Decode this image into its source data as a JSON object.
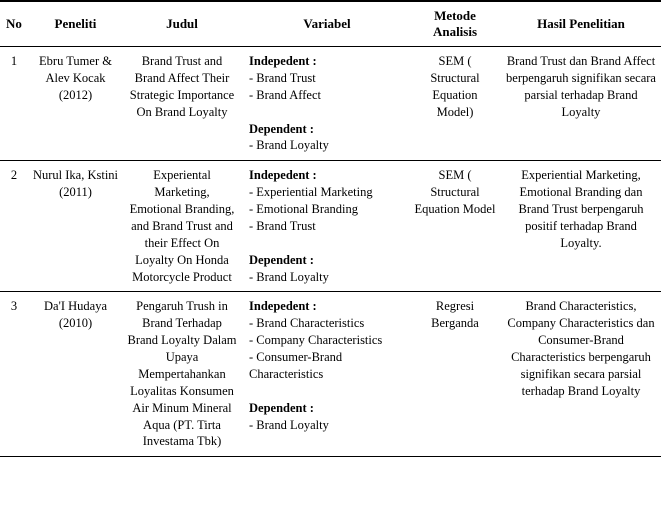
{
  "headers": {
    "no": "No",
    "peneliti": "Peneliti",
    "judul": "Judul",
    "variabel": "Variabel",
    "metode": "Metode Analisis",
    "hasil": "Hasil Penelitian"
  },
  "labels": {
    "independent": "Indepedent :",
    "dependent": "Dependent :"
  },
  "rows": [
    {
      "no": "1",
      "peneliti": "Ebru Tumer & Alev Kocak (2012)",
      "judul": "Brand Trust and Brand Affect Their Strategic Importance On Brand Loyalty",
      "independents": [
        "- Brand Trust",
        "- Brand Affect"
      ],
      "dependents": [
        "- Brand Loyalty"
      ],
      "metode": "SEM ( Structural Equation Model)",
      "hasil": "Brand Trust dan Brand Affect berpengaruh signifikan secara parsial terhadap Brand Loyalty"
    },
    {
      "no": "2",
      "peneliti": "Nurul Ika, Kstini (2011)",
      "judul": "Experiental Marketing, Emotional Branding, and Brand Trust and their Effect On Loyalty On Honda Motorcycle Product",
      "independents": [
        "- Experiential Marketing",
        "- Emotional Branding",
        "- Brand Trust"
      ],
      "dependents": [
        "- Brand Loyalty"
      ],
      "metode": "SEM ( Structural Equation Model",
      "hasil": "Experiential Marketing, Emotional Branding dan Brand Trust berpengaruh positif terhadap Brand Loyalty."
    },
    {
      "no": "3",
      "peneliti": "Da'I Hudaya (2010)",
      "judul": "Pengaruh Trush in Brand Terhadap Brand Loyalty Dalam Upaya Mempertahankan Loyalitas Konsumen Air Minum Mineral Aqua (PT. Tirta Investama Tbk)",
      "independents": [
        "- Brand Characteristics",
        "- Company Characteristics",
        "- Consumer-Brand Characteristics"
      ],
      "dependents": [
        "- Brand Loyalty"
      ],
      "metode": "Regresi Berganda",
      "hasil": "Brand Characteristics, Company Characteristics dan Consumer-Brand Characteristics berpengaruh signifikan secara parsial terhadap Brand Loyalty"
    }
  ]
}
